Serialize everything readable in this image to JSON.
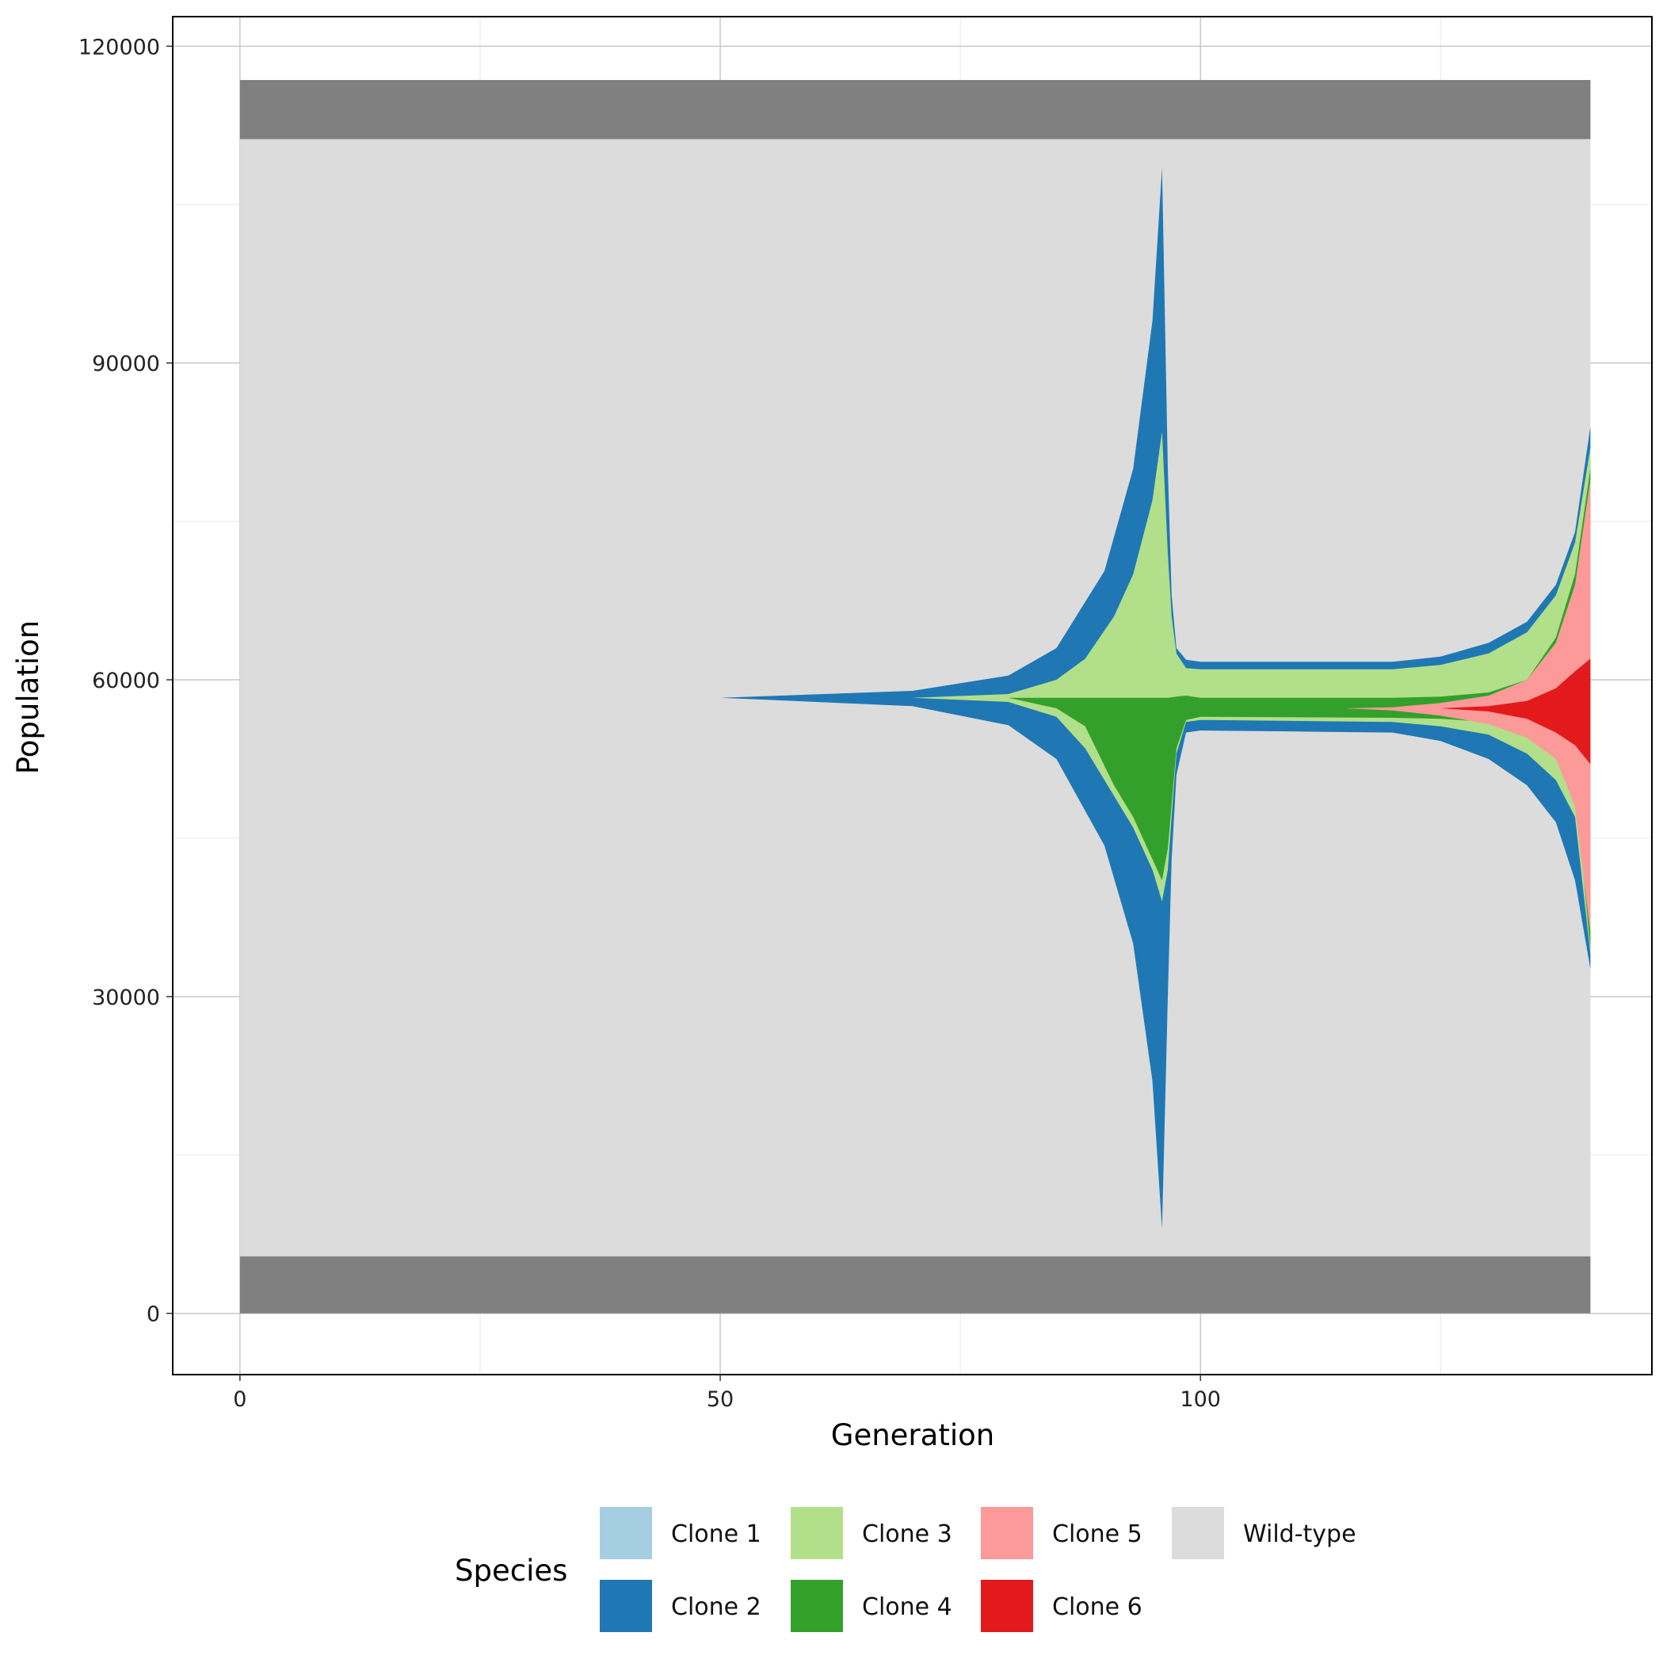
{
  "chart_data": {
    "type": "area",
    "subtype": "fish-plot (stacked, centered)",
    "title": "",
    "xlabel": "Generation",
    "ylabel": "Population",
    "xlim": [
      -7,
      147
    ],
    "ylim": [
      -5800,
      122800
    ],
    "xticks": [
      0,
      50,
      100
    ],
    "xticks_minor": [
      25,
      75,
      125
    ],
    "yticks": [
      0,
      30000,
      60000,
      90000,
      120000
    ],
    "yticks_minor": [
      15000,
      45000,
      75000,
      105000
    ],
    "grid": true,
    "legend": {
      "title": "Species",
      "position": "bottom",
      "entries": [
        {
          "label": "Clone 1",
          "color": "#a6cee3"
        },
        {
          "label": "Clone 2",
          "color": "#1f78b4"
        },
        {
          "label": "Clone 3",
          "color": "#b2df8a"
        },
        {
          "label": "Clone 4",
          "color": "#33a02c"
        },
        {
          "label": "Clone 5",
          "color": "#fb9a99"
        },
        {
          "label": "Clone 6",
          "color": "#e31a1c"
        },
        {
          "label": "Wild-type",
          "color": "#dcdcdc"
        }
      ]
    },
    "background_bands": [
      {
        "y0": 111200,
        "y1": 116800,
        "color": "#808080"
      },
      {
        "y0": 0,
        "y1": 5400,
        "color": "#808080"
      }
    ],
    "wildtype_region": {
      "x0": 0,
      "x1": 140.6,
      "y0": 5400,
      "y1": 111200,
      "color": "#dcdcdc"
    },
    "series": [
      {
        "name": "Clone 2",
        "color": "#1f78b4",
        "points": [
          [
            50,
            58300,
            58300
          ],
          [
            70,
            58950,
            57500
          ],
          [
            80,
            60400,
            55700
          ],
          [
            85,
            63000,
            52500
          ],
          [
            90,
            70300,
            44300
          ],
          [
            93,
            80000,
            35000
          ],
          [
            95,
            94000,
            22000
          ],
          [
            96,
            108500,
            8000
          ],
          [
            96.6,
            80000,
            30000
          ],
          [
            97,
            68000,
            43000
          ],
          [
            97.5,
            63000,
            51000
          ],
          [
            98.5,
            61900,
            55000
          ],
          [
            100,
            61700,
            55200
          ],
          [
            110,
            61700,
            55100
          ],
          [
            120,
            61700,
            55000
          ],
          [
            125,
            62200,
            54200
          ],
          [
            130,
            63500,
            52500
          ],
          [
            134,
            65500,
            50000
          ],
          [
            137,
            69000,
            46500
          ],
          [
            139,
            74000,
            41000
          ],
          [
            140.6,
            84000,
            32600
          ]
        ]
      },
      {
        "name": "Clone 3",
        "color": "#b2df8a",
        "points": [
          [
            70,
            58300,
            58300
          ],
          [
            80,
            58650,
            57900
          ],
          [
            85,
            60000,
            56500
          ],
          [
            88,
            62000,
            53500
          ],
          [
            91,
            66000,
            49000
          ],
          [
            93,
            70000,
            46000
          ],
          [
            95,
            77000,
            42000
          ],
          [
            96,
            83500,
            39000
          ],
          [
            96.6,
            72000,
            42000
          ],
          [
            97,
            66000,
            47000
          ],
          [
            97.5,
            62500,
            53000
          ],
          [
            98.5,
            61100,
            56000
          ],
          [
            100,
            61000,
            56200
          ],
          [
            120,
            61000,
            56000
          ],
          [
            125,
            61400,
            55600
          ],
          [
            130,
            62500,
            54800
          ],
          [
            134,
            64500,
            53000
          ],
          [
            137,
            68000,
            50500
          ],
          [
            139,
            73000,
            47000
          ],
          [
            140.6,
            82000,
            34000
          ]
        ]
      },
      {
        "name": "Clone 4",
        "color": "#33a02c",
        "points": [
          [
            80,
            58300,
            58300
          ],
          [
            85,
            58300,
            57300
          ],
          [
            88,
            58300,
            55600
          ],
          [
            91,
            58300,
            50000
          ],
          [
            93,
            58300,
            47000
          ],
          [
            95,
            58300,
            43000
          ],
          [
            96,
            58300,
            41000
          ],
          [
            96.6,
            58300,
            44000
          ],
          [
            97.5,
            58400,
            53500
          ],
          [
            98.5,
            58500,
            56200
          ],
          [
            100,
            58300,
            56500
          ],
          [
            120,
            58300,
            56400
          ],
          [
            125,
            58400,
            56300
          ],
          [
            130,
            58800,
            56000
          ],
          [
            134,
            60000,
            55200
          ],
          [
            137,
            64000,
            53500
          ],
          [
            139,
            70000,
            50000
          ],
          [
            140.6,
            80000,
            34500
          ]
        ]
      },
      {
        "name": "Clone 5",
        "color": "#fb9a99",
        "points": [
          [
            115,
            57300,
            57300
          ],
          [
            120,
            57400,
            57100
          ],
          [
            125,
            57800,
            56600
          ],
          [
            130,
            58500,
            55800
          ],
          [
            134,
            60000,
            54500
          ],
          [
            137,
            63500,
            52500
          ],
          [
            139,
            69000,
            48000
          ],
          [
            140.6,
            79000,
            36000
          ]
        ]
      },
      {
        "name": "Clone 6",
        "color": "#e31a1c",
        "points": [
          [
            125,
            57300,
            57300
          ],
          [
            130,
            57500,
            57000
          ],
          [
            134,
            58000,
            56300
          ],
          [
            137,
            59200,
            55000
          ],
          [
            139,
            60800,
            53800
          ],
          [
            140.6,
            62000,
            52000
          ]
        ]
      }
    ]
  }
}
